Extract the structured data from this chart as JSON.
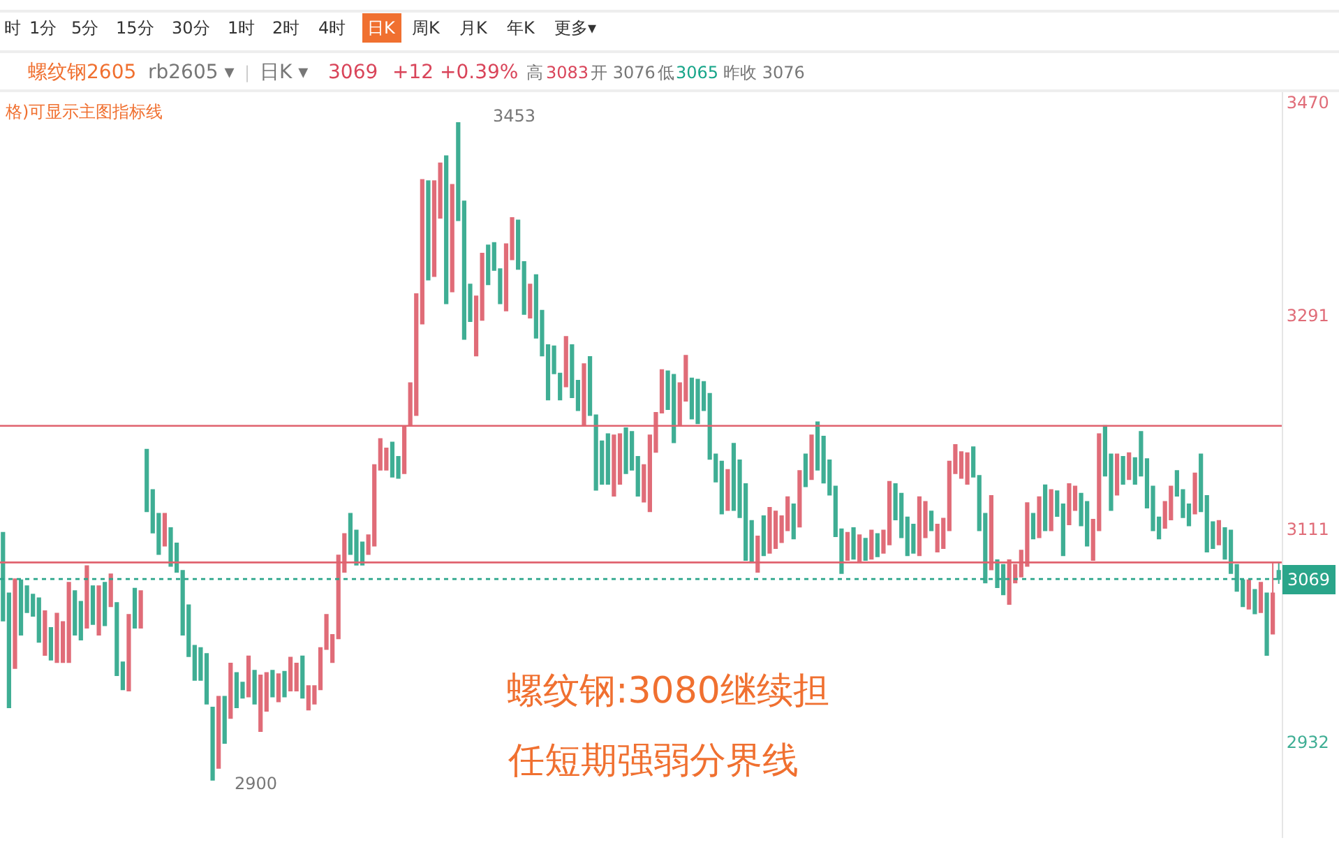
{
  "chart_data": {
    "type": "candlestick",
    "categories": [
      null,
      null,
      null,
      null,
      null,
      null,
      null,
      null,
      null,
      null,
      null,
      null,
      null,
      null,
      null,
      null,
      null,
      null,
      null,
      null,
      null,
      null,
      null,
      null,
      null,
      null,
      null,
      null,
      null,
      null,
      null,
      null,
      null,
      null,
      null,
      null,
      null,
      null,
      null,
      null,
      null,
      null,
      null,
      null,
      null,
      null,
      null,
      null,
      null,
      null,
      null,
      null,
      null,
      null,
      null,
      null,
      null,
      null,
      null,
      null,
      null,
      null,
      null,
      null,
      null,
      null,
      null,
      null,
      null,
      null,
      null,
      null,
      null,
      null,
      null,
      null,
      null,
      null,
      null,
      null,
      null,
      null,
      null,
      null,
      null,
      null,
      null,
      null,
      null,
      null,
      null,
      null,
      null,
      null,
      null,
      null,
      null,
      null,
      null,
      null,
      null,
      null,
      null,
      null,
      null,
      null,
      null,
      null,
      null,
      null,
      null,
      null,
      null,
      null,
      null,
      null,
      null,
      null,
      null,
      null,
      null,
      null,
      null,
      null,
      null,
      null,
      null,
      null,
      null,
      null,
      null,
      null,
      null,
      null,
      null,
      null,
      null,
      null,
      null,
      null,
      null,
      null,
      null,
      null,
      null,
      null,
      null,
      null,
      null,
      null,
      null,
      null,
      null,
      null,
      null,
      null,
      null,
      null,
      null,
      null,
      null,
      null,
      null,
      null,
      null,
      null,
      null,
      null,
      null,
      null,
      null,
      null,
      null,
      null,
      null,
      null,
      null,
      null,
      null,
      null,
      null,
      null,
      null,
      null,
      null,
      null,
      null,
      null,
      null,
      null,
      null,
      null,
      null,
      null,
      null,
      null,
      null,
      null,
      null,
      null,
      null,
      null,
      null,
      null,
      null,
      null,
      null,
      null,
      null,
      null,
      null,
      null,
      null,
      null
    ],
    "ohlc": [
      [
        3108,
        3108,
        3034,
        3034
      ],
      [
        3057,
        3057,
        2961,
        2961
      ],
      [
        2994,
        3069,
        2994,
        3069
      ],
      [
        3068,
        3068,
        3022,
        3022
      ],
      [
        3063,
        3063,
        3041,
        3041
      ],
      [
        3056,
        3056,
        3038,
        3038
      ],
      [
        3053,
        3053,
        3016,
        3016
      ],
      [
        3005,
        3042,
        3005,
        3042
      ],
      [
        3028,
        3028,
        3001,
        3001
      ],
      [
        2999,
        3040,
        2999,
        3040
      ],
      [
        2999,
        3033,
        2999,
        3033
      ],
      [
        2999,
        3066,
        2999,
        3066
      ],
      [
        3059,
        3059,
        3022,
        3022
      ],
      [
        3050,
        3050,
        3018,
        3018
      ],
      [
        3028,
        3080,
        3028,
        3080
      ],
      [
        3063,
        3063,
        3031,
        3031
      ],
      [
        3022,
        3063,
        3022,
        3063
      ],
      [
        3066,
        3066,
        3030,
        3030
      ],
      [
        3046,
        3073,
        3046,
        3073
      ],
      [
        3049,
        3049,
        2988,
        2988
      ],
      [
        2999,
        2999,
        2976,
        2976
      ],
      [
        2975,
        3039,
        2975,
        3039
      ],
      [
        3061,
        3061,
        3028,
        3028
      ],
      [
        3028,
        3059,
        3028,
        3059
      ],
      [
        3178,
        3178,
        3126,
        3126
      ],
      [
        3144,
        3144,
        3108,
        3108
      ],
      [
        3124,
        3124,
        3090,
        3090
      ],
      [
        3097,
        3124,
        3097,
        3124
      ],
      [
        3112,
        3112,
        3080,
        3080
      ],
      [
        3099,
        3099,
        3075,
        3075
      ],
      [
        3076,
        3076,
        3022,
        3022
      ],
      [
        3047,
        3047,
        3004,
        3004
      ],
      [
        3013,
        3013,
        2984,
        2984
      ],
      [
        3011,
        3011,
        2984,
        2984
      ],
      [
        3006,
        3006,
        2964,
        2964
      ],
      [
        2961,
        2961,
        2900,
        2900
      ],
      [
        2910,
        2970,
        2910,
        2970
      ],
      [
        2970,
        2970,
        2931,
        2931
      ],
      [
        2952,
        2998,
        2952,
        2998
      ],
      [
        2990,
        2990,
        2961,
        2961
      ],
      [
        2982,
        2982,
        2969,
        2969
      ],
      [
        2970,
        3004,
        2970,
        3004
      ],
      [
        2992,
        2992,
        2964,
        2964
      ],
      [
        2941,
        2988,
        2941,
        2988
      ],
      [
        2958,
        2990,
        2958,
        2990
      ],
      [
        2992,
        2992,
        2970,
        2970
      ],
      [
        2966,
        2989,
        2966,
        2989
      ],
      [
        2991,
        2991,
        2970,
        2970
      ],
      [
        2975,
        3003,
        2975,
        3003
      ],
      [
        2975,
        2998,
        2975,
        2998
      ],
      [
        3004,
        3004,
        2969,
        2969
      ],
      [
        2959,
        2979,
        2959,
        2979
      ],
      [
        2964,
        2979,
        2964,
        2979
      ],
      [
        2976,
        3011,
        2976,
        3011
      ],
      [
        3010,
        3039,
        3010,
        3039
      ],
      [
        2999,
        3022,
        2999,
        3022
      ],
      [
        3019,
        3089,
        3019,
        3089
      ],
      [
        3075,
        3107,
        3075,
        3107
      ],
      [
        3124,
        3124,
        3090,
        3090
      ],
      [
        3110,
        3110,
        3081,
        3081
      ],
      [
        3100,
        3100,
        3081,
        3081
      ],
      [
        3090,
        3106,
        3090,
        3106
      ],
      [
        3097,
        3165,
        3097,
        3165
      ],
      [
        3161,
        3187,
        3161,
        3187
      ],
      [
        3161,
        3179,
        3161,
        3179
      ],
      [
        3184,
        3184,
        3155,
        3155
      ],
      [
        3172,
        3172,
        3154,
        3154
      ],
      [
        3158,
        3197,
        3158,
        3197
      ],
      [
        3199,
        3234,
        3199,
        3234
      ],
      [
        3207,
        3309,
        3207,
        3309
      ],
      [
        3284,
        3405,
        3284,
        3405
      ],
      [
        3404,
        3404,
        3321,
        3321
      ],
      [
        3324,
        3404,
        3324,
        3404
      ],
      [
        3373,
        3419,
        3373,
        3419
      ],
      [
        3425,
        3425,
        3301,
        3301
      ],
      [
        3311,
        3401,
        3311,
        3401
      ],
      [
        3453,
        3453,
        3371,
        3371
      ],
      [
        3387,
        3387,
        3271,
        3271
      ],
      [
        3317,
        3317,
        3286,
        3286
      ],
      [
        3257,
        3307,
        3257,
        3307
      ],
      [
        3287,
        3343,
        3287,
        3343
      ],
      [
        3350,
        3350,
        3317,
        3317
      ],
      [
        3352,
        3352,
        3329,
        3329
      ],
      [
        3330,
        3330,
        3301,
        3301
      ],
      [
        3295,
        3351,
        3295,
        3351
      ],
      [
        3338,
        3373,
        3338,
        3373
      ],
      [
        3371,
        3371,
        3330,
        3330
      ],
      [
        3336,
        3336,
        3292,
        3292
      ],
      [
        3289,
        3317,
        3289,
        3317
      ],
      [
        3325,
        3325,
        3272,
        3272
      ],
      [
        3295,
        3295,
        3257,
        3257
      ],
      [
        3266,
        3266,
        3220,
        3220
      ],
      [
        3265,
        3265,
        3242,
        3242
      ],
      [
        3242,
        3242,
        3220,
        3220
      ],
      [
        3231,
        3273,
        3231,
        3273
      ],
      [
        3266,
        3266,
        3222,
        3222
      ],
      [
        3236,
        3236,
        3211,
        3211
      ],
      [
        3199,
        3250,
        3199,
        3250
      ],
      [
        3256,
        3256,
        3207,
        3207
      ],
      [
        3207,
        3207,
        3144,
        3144
      ],
      [
        3185,
        3185,
        3149,
        3149
      ],
      [
        3191,
        3191,
        3149,
        3149
      ],
      [
        3139,
        3190,
        3139,
        3190
      ],
      [
        3149,
        3191,
        3149,
        3191
      ],
      [
        3196,
        3196,
        3158,
        3158
      ],
      [
        3193,
        3193,
        3161,
        3161
      ],
      [
        3172,
        3172,
        3139,
        3139
      ],
      [
        3134,
        3165,
        3134,
        3165
      ],
      [
        3126,
        3190,
        3126,
        3190
      ],
      [
        3176,
        3209,
        3176,
        3209
      ],
      [
        3209,
        3245,
        3209,
        3245
      ],
      [
        3244,
        3244,
        3212,
        3212
      ],
      [
        3241,
        3241,
        3184,
        3184
      ],
      [
        3199,
        3234,
        3199,
        3234
      ],
      [
        3219,
        3257,
        3219,
        3257
      ],
      [
        3238,
        3238,
        3204,
        3204
      ],
      [
        3237,
        3237,
        3200,
        3200
      ],
      [
        3235,
        3235,
        3211,
        3211
      ],
      [
        3225,
        3225,
        3170,
        3170
      ],
      [
        3174,
        3174,
        3151,
        3151
      ],
      [
        3168,
        3168,
        3124,
        3124
      ],
      [
        3127,
        3161,
        3127,
        3161
      ],
      [
        3183,
        3183,
        3127,
        3127
      ],
      [
        3169,
        3169,
        3121,
        3121
      ],
      [
        3149,
        3149,
        3085,
        3085
      ],
      [
        3118,
        3118,
        3083,
        3083
      ],
      [
        3075,
        3105,
        3075,
        3105
      ],
      [
        3122,
        3122,
        3089,
        3089
      ],
      [
        3091,
        3129,
        3091,
        3129
      ],
      [
        3095,
        3126,
        3095,
        3126
      ],
      [
        3100,
        3122,
        3100,
        3122
      ],
      [
        3110,
        3138,
        3110,
        3138
      ],
      [
        3132,
        3132,
        3103,
        3103
      ],
      [
        3113,
        3160,
        3113,
        3160
      ],
      [
        3174,
        3174,
        3147,
        3147
      ],
      [
        3153,
        3190,
        3153,
        3190
      ],
      [
        3201,
        3201,
        3161,
        3161
      ],
      [
        3189,
        3189,
        3150,
        3150
      ],
      [
        3169,
        3169,
        3140,
        3140
      ],
      [
        3147,
        3147,
        3105,
        3105
      ],
      [
        3111,
        3111,
        3074,
        3074
      ],
      [
        3085,
        3108,
        3085,
        3108
      ],
      [
        3112,
        3112,
        3086,
        3086
      ],
      [
        3083,
        3106,
        3083,
        3106
      ],
      [
        3103,
        3103,
        3085,
        3085
      ],
      [
        3086,
        3110,
        3086,
        3110
      ],
      [
        3107,
        3107,
        3088,
        3088
      ],
      [
        3091,
        3110,
        3091,
        3110
      ],
      [
        3098,
        3151,
        3098,
        3151
      ],
      [
        3149,
        3149,
        3119,
        3119
      ],
      [
        3141,
        3141,
        3104,
        3104
      ],
      [
        3121,
        3121,
        3089,
        3089
      ],
      [
        3115,
        3115,
        3091,
        3091
      ],
      [
        3089,
        3138,
        3089,
        3138
      ],
      [
        3104,
        3134,
        3104,
        3134
      ],
      [
        3126,
        3126,
        3110,
        3110
      ],
      [
        3092,
        3115,
        3092,
        3115
      ],
      [
        3095,
        3120,
        3095,
        3120
      ],
      [
        3110,
        3168,
        3110,
        3168
      ],
      [
        3158,
        3182,
        3158,
        3182
      ],
      [
        3154,
        3176,
        3154,
        3176
      ],
      [
        3149,
        3175,
        3149,
        3175
      ],
      [
        3180,
        3180,
        3155,
        3155
      ],
      [
        3156,
        3156,
        3110,
        3110
      ],
      [
        3124,
        3124,
        3066,
        3066
      ],
      [
        3077,
        3139,
        3077,
        3139
      ],
      [
        3085,
        3085,
        3062,
        3062
      ],
      [
        3081,
        3081,
        3056,
        3056
      ],
      [
        3048,
        3085,
        3048,
        3085
      ],
      [
        3066,
        3081,
        3066,
        3081
      ],
      [
        3071,
        3093,
        3071,
        3093
      ],
      [
        3080,
        3133,
        3080,
        3133
      ],
      [
        3124,
        3124,
        3103,
        3103
      ],
      [
        3104,
        3138,
        3104,
        3138
      ],
      [
        3148,
        3148,
        3110,
        3110
      ],
      [
        3110,
        3144,
        3110,
        3144
      ],
      [
        3143,
        3143,
        3122,
        3122
      ],
      [
        3132,
        3132,
        3089,
        3089
      ],
      [
        3115,
        3149,
        3115,
        3149
      ],
      [
        3127,
        3147,
        3127,
        3147
      ],
      [
        3141,
        3141,
        3114,
        3114
      ],
      [
        3134,
        3134,
        3097,
        3097
      ],
      [
        3085,
        3119,
        3085,
        3119
      ],
      [
        3110,
        3191,
        3110,
        3191
      ],
      [
        3198,
        3198,
        3156,
        3156
      ],
      [
        3174,
        3174,
        3127,
        3127
      ],
      [
        3140,
        3174,
        3140,
        3174
      ],
      [
        3172,
        3172,
        3149,
        3149
      ],
      [
        3153,
        3175,
        3153,
        3175
      ],
      [
        3171,
        3171,
        3149,
        3149
      ],
      [
        3193,
        3193,
        3156,
        3156
      ],
      [
        3170,
        3170,
        3129,
        3129
      ],
      [
        3147,
        3147,
        3110,
        3110
      ],
      [
        3121,
        3121,
        3103,
        3103
      ],
      [
        3112,
        3134,
        3112,
        3134
      ],
      [
        3119,
        3147,
        3119,
        3147
      ],
      [
        3160,
        3160,
        3139,
        3139
      ],
      [
        3144,
        3144,
        3121,
        3121
      ],
      [
        3132,
        3132,
        3114,
        3114
      ],
      [
        3124,
        3158,
        3124,
        3158
      ],
      [
        3174,
        3174,
        3126,
        3126
      ],
      [
        3139,
        3139,
        3092,
        3092
      ],
      [
        3117,
        3117,
        3095,
        3095
      ],
      [
        3098,
        3118,
        3098,
        3118
      ],
      [
        3112,
        3112,
        3086,
        3086
      ],
      [
        3110,
        3110,
        3074,
        3074
      ],
      [
        3081,
        3081,
        3059,
        3059
      ],
      [
        3068,
        3068,
        3046,
        3046
      ],
      [
        3044,
        3068,
        3044,
        3068
      ],
      [
        3060,
        3060,
        3040,
        3040
      ],
      [
        3041,
        3066,
        3041,
        3066
      ],
      [
        3057,
        3057,
        3005,
        3005
      ],
      [
        3023,
        3083,
        3023,
        3057
      ],
      [
        3076,
        3083,
        3065,
        3069
      ]
    ],
    "colors": [
      "#3fae94",
      "#3fae94",
      "#e06c78",
      "#3fae94",
      "#3fae94",
      "#3fae94",
      "#3fae94",
      "#e06c78",
      "#3fae94",
      "#e06c78",
      "#e06c78",
      "#e06c78",
      "#3fae94",
      "#3fae94",
      "#e06c78",
      "#3fae94",
      "#e06c78",
      "#3fae94",
      "#e06c78",
      "#3fae94",
      "#3fae94",
      "#e06c78",
      "#3fae94",
      "#e06c78",
      "#3fae94",
      "#3fae94",
      "#3fae94",
      "#e06c78",
      "#3fae94",
      "#3fae94",
      "#3fae94",
      "#3fae94",
      "#3fae94",
      "#3fae94",
      "#3fae94",
      "#3fae94",
      "#e06c78",
      "#3fae94",
      "#e06c78",
      "#3fae94",
      "#3fae94",
      "#e06c78",
      "#3fae94",
      "#e06c78",
      "#e06c78",
      "#3fae94",
      "#e06c78",
      "#3fae94",
      "#e06c78",
      "#e06c78",
      "#3fae94",
      "#e06c78",
      "#e06c78",
      "#e06c78",
      "#e06c78",
      "#e06c78",
      "#e06c78",
      "#e06c78",
      "#3fae94",
      "#3fae94",
      "#3fae94",
      "#e06c78",
      "#e06c78",
      "#e06c78",
      "#e06c78",
      "#3fae94",
      "#3fae94",
      "#e06c78",
      "#e06c78",
      "#e06c78",
      "#e06c78",
      "#3fae94",
      "#e06c78",
      "#e06c78",
      "#3fae94",
      "#e06c78",
      "#3fae94",
      "#3fae94",
      "#3fae94",
      "#e06c78",
      "#e06c78",
      "#3fae94",
      "#3fae94",
      "#3fae94",
      "#e06c78",
      "#e06c78",
      "#3fae94",
      "#3fae94",
      "#e06c78",
      "#3fae94",
      "#3fae94",
      "#3fae94",
      "#3fae94",
      "#3fae94",
      "#e06c78",
      "#3fae94",
      "#3fae94",
      "#e06c78",
      "#3fae94",
      "#3fae94",
      "#3fae94",
      "#3fae94",
      "#e06c78",
      "#e06c78",
      "#3fae94",
      "#3fae94",
      "#3fae94",
      "#e06c78",
      "#e06c78",
      "#e06c78",
      "#e06c78",
      "#3fae94",
      "#3fae94",
      "#e06c78",
      "#e06c78",
      "#3fae94",
      "#3fae94",
      "#3fae94",
      "#3fae94",
      "#3fae94",
      "#3fae94",
      "#e06c78",
      "#3fae94",
      "#3fae94",
      "#3fae94",
      "#3fae94",
      "#e06c78",
      "#3fae94",
      "#e06c78",
      "#e06c78",
      "#e06c78",
      "#e06c78",
      "#3fae94",
      "#e06c78",
      "#3fae94",
      "#e06c78",
      "#3fae94",
      "#3fae94",
      "#3fae94",
      "#3fae94",
      "#3fae94",
      "#e06c78",
      "#3fae94",
      "#e06c78",
      "#3fae94",
      "#e06c78",
      "#3fae94",
      "#e06c78",
      "#e06c78",
      "#3fae94",
      "#3fae94",
      "#3fae94",
      "#3fae94",
      "#e06c78",
      "#e06c78",
      "#3fae94",
      "#e06c78",
      "#e06c78",
      "#e06c78",
      "#e06c78",
      "#e06c78",
      "#e06c78",
      "#3fae94",
      "#3fae94",
      "#3fae94",
      "#e06c78",
      "#3fae94",
      "#3fae94",
      "#e06c78",
      "#e06c78",
      "#e06c78",
      "#e06c78",
      "#3fae94",
      "#e06c78",
      "#3fae94",
      "#e06c78",
      "#3fae94",
      "#3fae94",
      "#e06c78",
      "#e06c78",
      "#3fae94",
      "#3fae94",
      "#e06c78",
      "#e06c78",
      "#3fae94",
      "#3fae94",
      "#e06c78",
      "#3fae94",
      "#e06c78",
      "#3fae94",
      "#3fae94",
      "#3fae94",
      "#3fae94",
      "#3fae94",
      "#e06c78",
      "#e06c78",
      "#3fae94",
      "#3fae94",
      "#3fae94",
      "#e06c78",
      "#3fae94",
      "#3fae94",
      "#3fae94",
      "#e06c78",
      "#3fae94",
      "#3fae94",
      "#3fae94",
      "#3fae94",
      "#e06c78",
      "#3fae94",
      "#e06c78",
      "#3fae94",
      "#e06c78",
      "#3fae94"
    ],
    "ylim": [
      2851,
      3480
    ],
    "yticks": [
      2932,
      3111,
      3291,
      3470
    ],
    "tick_labels": "y",
    "grid": false,
    "ref_lines": [
      {
        "axis": "y",
        "value": 3069,
        "label": "3069",
        "color": "#2aa58a",
        "line_style": "dotted"
      },
      {
        "axis": "y",
        "value": 3198,
        "color": "#e0626e"
      },
      {
        "axis": "y",
        "value": 3083,
        "color": "#e0626e"
      }
    ],
    "annotations": [
      "时",
      "1分",
      "5分",
      "15分",
      "30分",
      "1时",
      "2时",
      "4时",
      "日K",
      "周K",
      "月K",
      "年K",
      "更多▾",
      "螺纹钢2605",
      "rb2605 ▾",
      "|",
      "日K ▾",
      "3069",
      "+12",
      "+0.39%",
      "高",
      "3083",
      "开 3076",
      "低",
      "3065",
      "昨收 3076",
      "格)可显示主图指标线",
      "螺纹钢:3080继续担",
      "任短期强弱分界线",
      "3453",
      "2900"
    ]
  }
}
